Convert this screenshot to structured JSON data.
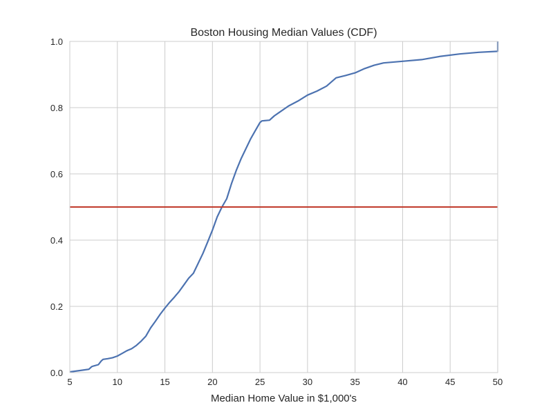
{
  "chart_data": {
    "type": "line",
    "title": "Boston Housing Median Values (CDF)",
    "xlabel": "Median Home Value in $1,000's",
    "ylabel": "",
    "xlim": [
      5,
      50
    ],
    "ylim": [
      0,
      1
    ],
    "xticks": [
      "5",
      "10",
      "15",
      "20",
      "25",
      "30",
      "35",
      "40",
      "45",
      "50"
    ],
    "yticks": [
      "0.0",
      "0.2",
      "0.4",
      "0.6",
      "0.8",
      "1.0"
    ],
    "grid": true,
    "series": [
      {
        "color": "#4c72b0",
        "x": [
          5,
          6,
          7,
          7.3,
          7.5,
          8,
          8.3,
          8.5,
          9,
          9.5,
          10,
          10.5,
          11,
          11.5,
          12,
          12.5,
          13,
          13.5,
          14,
          14.5,
          15,
          15.5,
          16,
          16.5,
          17,
          17.5,
          18,
          18.5,
          19,
          19.5,
          20,
          20.5,
          21,
          21.5,
          22,
          22.5,
          23,
          23.5,
          24,
          24.5,
          25,
          25.2,
          26,
          26.5,
          27,
          28,
          29,
          30,
          31,
          32,
          33,
          34,
          35,
          36,
          37,
          38,
          40,
          42,
          44,
          46,
          48,
          50,
          50
        ],
        "values": [
          0.002,
          0.006,
          0.01,
          0.018,
          0.02,
          0.024,
          0.035,
          0.04,
          0.042,
          0.045,
          0.05,
          0.058,
          0.066,
          0.072,
          0.082,
          0.095,
          0.11,
          0.135,
          0.155,
          0.176,
          0.195,
          0.212,
          0.228,
          0.245,
          0.265,
          0.285,
          0.3,
          0.33,
          0.36,
          0.395,
          0.43,
          0.47,
          0.5,
          0.525,
          0.57,
          0.61,
          0.645,
          0.675,
          0.705,
          0.73,
          0.755,
          0.76,
          0.762,
          0.775,
          0.785,
          0.805,
          0.82,
          0.838,
          0.85,
          0.865,
          0.89,
          0.897,
          0.905,
          0.918,
          0.928,
          0.935,
          0.94,
          0.945,
          0.955,
          0.962,
          0.967,
          0.97,
          1.0
        ]
      },
      {
        "color": "#c0392b",
        "x": [
          5,
          50
        ],
        "values": [
          0.5,
          0.5
        ]
      }
    ]
  }
}
